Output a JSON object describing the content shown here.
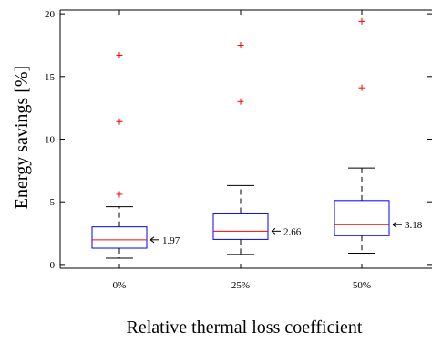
{
  "chart_data": {
    "type": "box",
    "xlabel": "Relative thermal loss coefficient",
    "ylabel": "Energy savings [%]",
    "ylim": [
      -0.3,
      20.3
    ],
    "yticks": [
      0,
      5,
      10,
      15,
      20
    ],
    "categories": [
      "0%",
      "25%",
      "50%"
    ],
    "boxes": [
      {
        "category": "0%",
        "whisker_low": 0.5,
        "q1": 1.3,
        "median": 1.97,
        "q3": 3.0,
        "whisker_high": 4.6,
        "outliers": [
          5.6,
          11.4,
          16.7
        ],
        "median_label": "1.97"
      },
      {
        "category": "25%",
        "whisker_low": 0.8,
        "q1": 2.0,
        "median": 2.66,
        "q3": 4.1,
        "whisker_high": 6.3,
        "outliers": [
          13.0,
          17.5
        ],
        "median_label": "2.66"
      },
      {
        "category": "50%",
        "whisker_low": 0.9,
        "q1": 2.3,
        "median": 3.18,
        "q3": 5.1,
        "whisker_high": 7.7,
        "outliers": [
          14.1,
          19.4
        ],
        "median_label": "3.18"
      }
    ],
    "colors": {
      "box": "#0000ff",
      "median": "#ff0000",
      "outlier": "#ff0000",
      "whisker": "#000000"
    },
    "grid": false,
    "legend": "none"
  }
}
